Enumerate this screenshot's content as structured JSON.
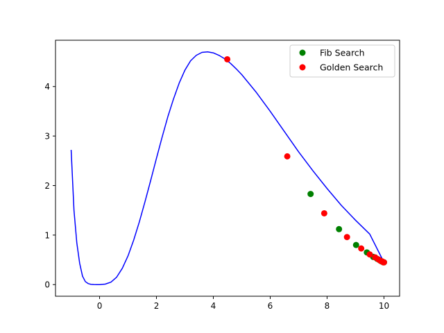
{
  "chart_data": {
    "type": "line",
    "title": "",
    "xlabel": "",
    "ylabel": "",
    "xlim": [
      -1.55,
      10.55
    ],
    "ylim": [
      -0.235,
      4.935
    ],
    "xticks": [
      0,
      2,
      4,
      6,
      8,
      10
    ],
    "yticks": [
      0,
      1,
      2,
      3,
      4
    ],
    "grid": false,
    "legend_placement": "top-right",
    "curve": {
      "color": "#0000ff",
      "x": [
        -1.0,
        -0.9,
        -0.8,
        -0.7,
        -0.6,
        -0.5,
        -0.4,
        -0.3,
        -0.2,
        -0.1,
        0.0,
        0.2,
        0.4,
        0.6,
        0.8,
        1.0,
        1.2,
        1.4,
        1.6,
        1.8,
        2.0,
        2.2,
        2.4,
        2.6,
        2.8,
        3.0,
        3.2,
        3.4,
        3.6,
        3.8,
        4.0,
        4.2,
        4.4,
        4.6,
        4.8,
        5.0,
        5.5,
        6.0,
        6.5,
        7.0,
        7.5,
        8.0,
        8.5,
        9.0,
        9.5,
        10.0
      ],
      "y": [
        2.72,
        1.5,
        0.84,
        0.43,
        0.17,
        0.06,
        0.02,
        0.005,
        0.001,
        0.0,
        0.0,
        0.01,
        0.05,
        0.15,
        0.33,
        0.58,
        0.9,
        1.27,
        1.68,
        2.11,
        2.55,
        2.98,
        3.39,
        3.75,
        4.07,
        4.33,
        4.52,
        4.63,
        4.69,
        4.7,
        4.68,
        4.63,
        4.56,
        4.47,
        4.36,
        4.24,
        3.89,
        3.5,
        3.09,
        2.68,
        2.3,
        1.94,
        1.6,
        1.3,
        1.02,
        0.45
      ]
    },
    "series": [
      {
        "name": "Fib Search",
        "color": "#008000",
        "x": [
          7.42,
          8.42,
          9.02,
          9.4,
          9.62,
          9.76,
          9.85,
          9.91,
          9.95,
          9.98,
          10.0
        ],
        "y": [
          1.83,
          1.12,
          0.8,
          0.65,
          0.56,
          0.52,
          0.49,
          0.47,
          0.46,
          0.45,
          0.45
        ]
      },
      {
        "name": "Golden Search",
        "color": "#ff0000",
        "x": [
          4.49,
          6.6,
          7.9,
          8.7,
          9.2,
          9.5,
          9.69,
          9.8,
          9.88,
          9.93,
          9.96,
          9.98,
          10.0
        ],
        "y": [
          4.55,
          2.59,
          1.44,
          0.96,
          0.73,
          0.61,
          0.55,
          0.51,
          0.48,
          0.47,
          0.46,
          0.45,
          0.45
        ]
      }
    ]
  }
}
